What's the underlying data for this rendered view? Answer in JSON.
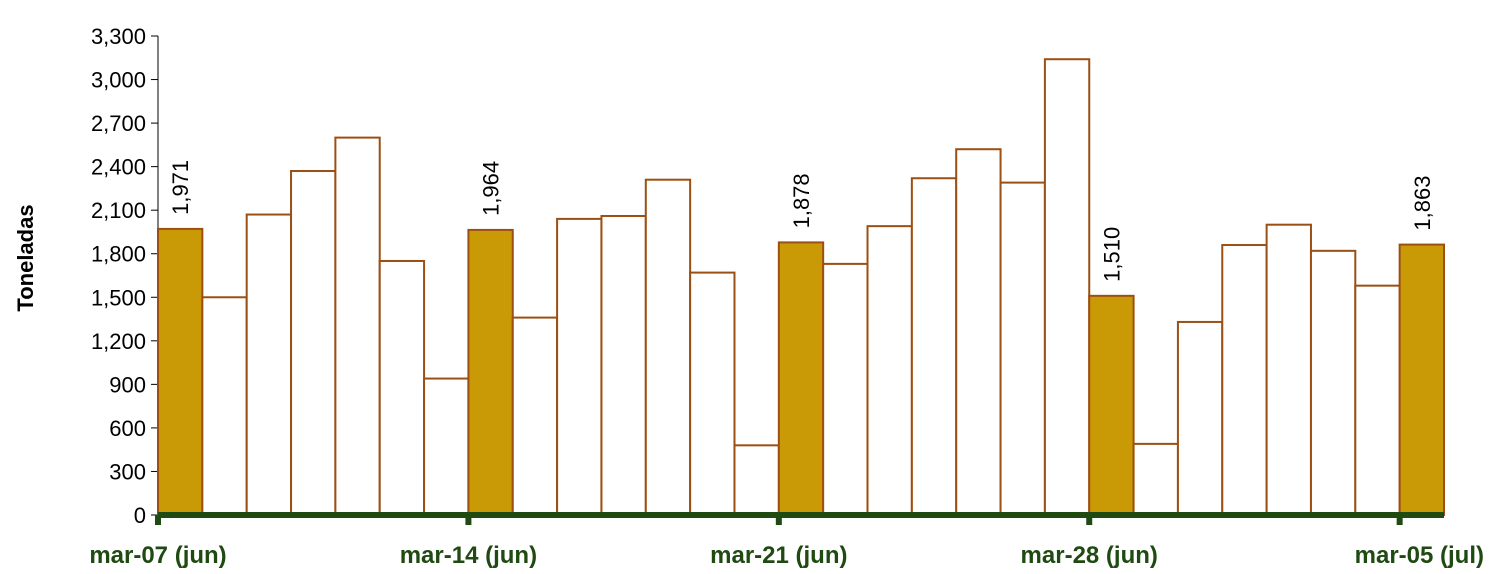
{
  "chart_data": {
    "type": "bar",
    "ylabel": "Toneladas",
    "xlabel": "",
    "ylim": [
      0,
      3300
    ],
    "yticks": [
      0,
      300,
      600,
      900,
      1200,
      1500,
      1800,
      2100,
      2400,
      2700,
      3000,
      3300
    ],
    "ytick_labels": [
      "0",
      "300",
      "600",
      "900",
      "1,200",
      "1,500",
      "1,800",
      "2,100",
      "2,400",
      "2,700",
      "3,000",
      "3,300"
    ],
    "x_tick_labels": [
      {
        "index": 0,
        "label": "mar-07 (jun)"
      },
      {
        "index": 7,
        "label": "mar-14 (jun)"
      },
      {
        "index": 14,
        "label": "mar-21 (jun)"
      },
      {
        "index": 21,
        "label": "mar-28 (jun)"
      },
      {
        "index": 28,
        "label": "mar-05 (jul)"
      }
    ],
    "values": [
      1971,
      1500,
      2070,
      2370,
      2600,
      1750,
      940,
      1964,
      1360,
      2040,
      2060,
      2310,
      1670,
      480,
      1878,
      1730,
      1990,
      2320,
      2520,
      2290,
      3140,
      1510,
      490,
      1330,
      1860,
      2000,
      1820,
      1580,
      1863
    ],
    "highlighted_indices": [
      0,
      7,
      14,
      21,
      28
    ],
    "data_labels": [
      {
        "index": 0,
        "text": "1,971"
      },
      {
        "index": 7,
        "text": "1,964"
      },
      {
        "index": 14,
        "text": "1,878"
      },
      {
        "index": 21,
        "text": "1,510"
      },
      {
        "index": 28,
        "text": "1,863"
      }
    ],
    "colors": {
      "highlight_fill": "#c99a06",
      "normal_fill": "#ffffff",
      "bar_stroke": "#9c4f12",
      "axis": "#1f4a12",
      "tick_label": "#1f4a12"
    },
    "grid": false,
    "legend": "none"
  }
}
